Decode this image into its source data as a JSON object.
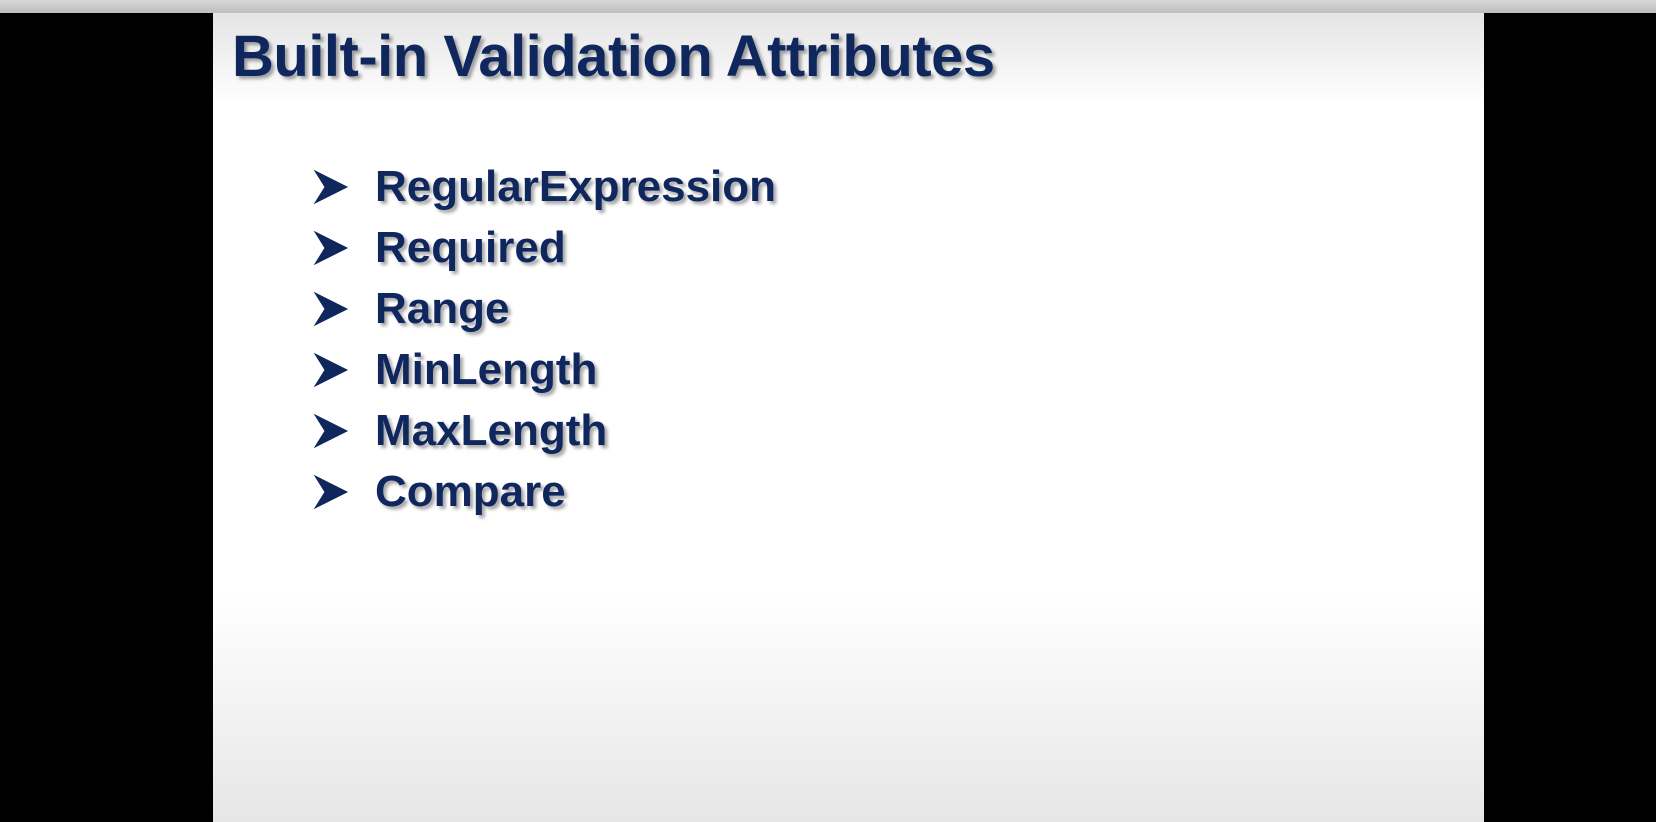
{
  "slide": {
    "title": "Built-in Validation Attributes",
    "bullets": [
      "RegularExpression",
      "Required",
      "Range",
      "MinLength",
      "MaxLength",
      "Compare"
    ]
  }
}
